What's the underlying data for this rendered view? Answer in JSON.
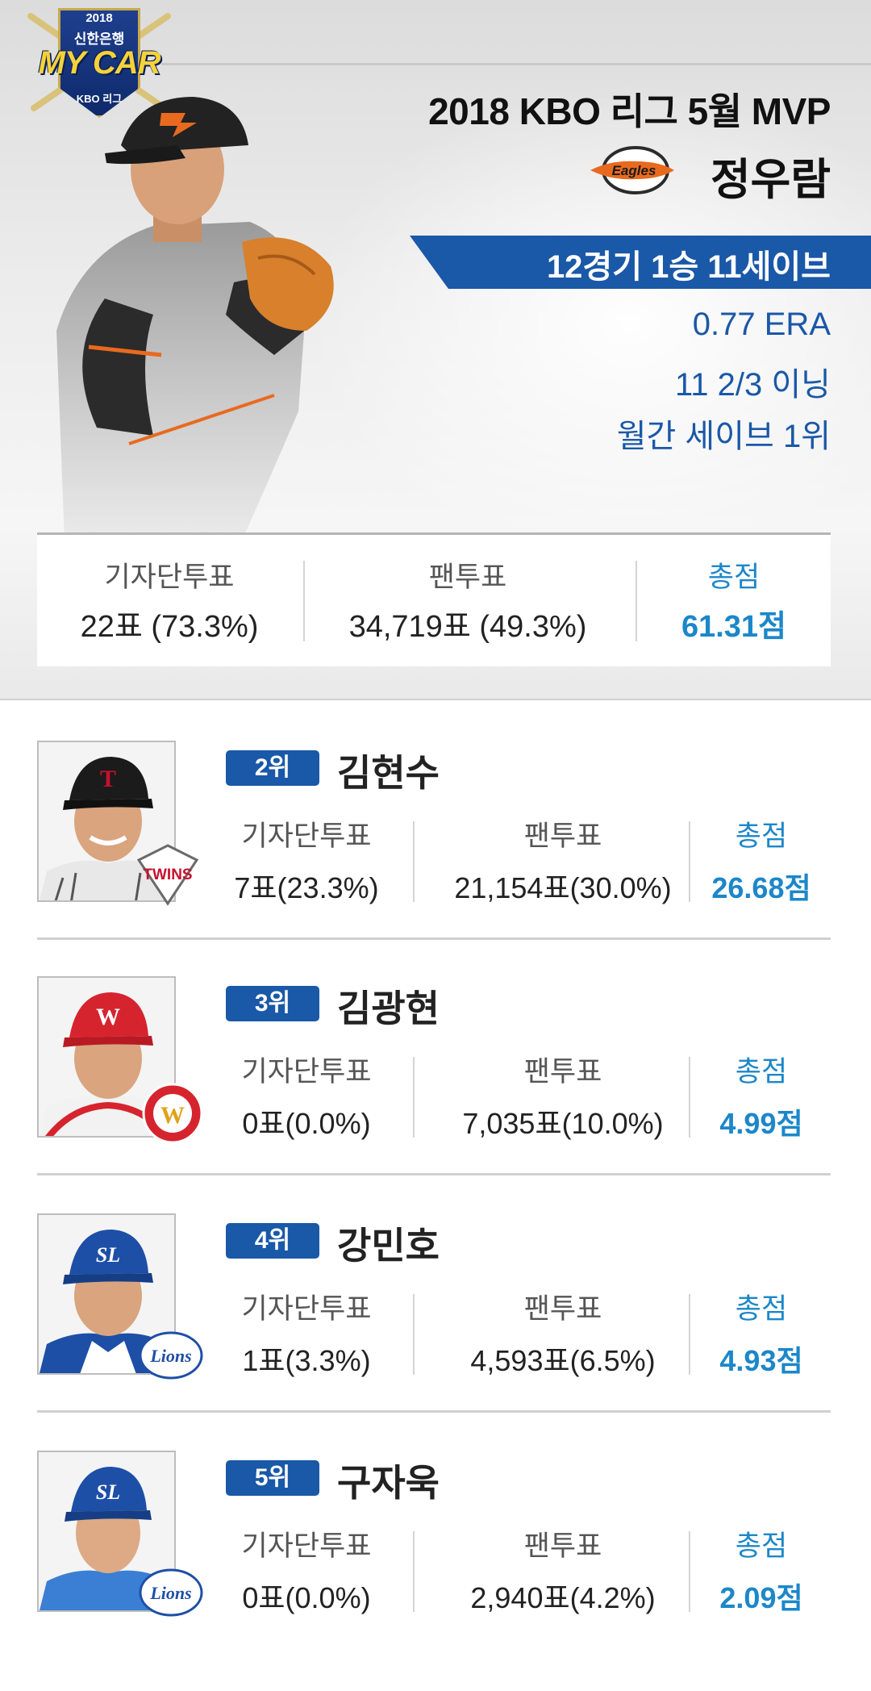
{
  "emblem": {
    "year": "2018",
    "bank": "신한은행",
    "title": "MY CAR",
    "league": "KBO 리그"
  },
  "hero": {
    "title": "2018 KBO 리그 5월 MVP",
    "team_logo_text": "Eagles",
    "name": "정우람",
    "record": "12경기 1승 11세이브",
    "stats": [
      "0.77 ERA",
      "11 2/3 이닝",
      "월간 세이브 1위"
    ],
    "votes": {
      "press_label": "기자단투표",
      "press_value": "22표 (73.3%)",
      "fan_label": "팬투표",
      "fan_value": "34,719표 (49.3%)",
      "total_label": "총점",
      "total_value": "61.31점"
    }
  },
  "colors": {
    "accent_blue": "#1a58a8",
    "total_blue": "#1c87c9"
  },
  "ranks": [
    {
      "rank": "2위",
      "name": "김현수",
      "team": "LG TWINS",
      "press_label": "기자단투표",
      "press_value": "7표(23.3%)",
      "fan_label": "팬투표",
      "fan_value": "21,154표(30.0%)",
      "total_label": "총점",
      "total_value": "26.68점"
    },
    {
      "rank": "3위",
      "name": "김광현",
      "team": "SK WYVERNS",
      "press_label": "기자단투표",
      "press_value": "0표(0.0%)",
      "fan_label": "팬투표",
      "fan_value": "7,035표(10.0%)",
      "total_label": "총점",
      "total_value": "4.99점"
    },
    {
      "rank": "4위",
      "name": "강민호",
      "team": "SAMSUNG Lions",
      "press_label": "기자단투표",
      "press_value": "1표(3.3%)",
      "fan_label": "팬투표",
      "fan_value": "4,593표(6.5%)",
      "total_label": "총점",
      "total_value": "4.93점"
    },
    {
      "rank": "5위",
      "name": "구자욱",
      "team": "SAMSUNG Lions",
      "press_label": "기자단투표",
      "press_value": "0표(0.0%)",
      "fan_label": "팬투표",
      "fan_value": "2,940표(4.2%)",
      "total_label": "총점",
      "total_value": "2.09점"
    }
  ]
}
